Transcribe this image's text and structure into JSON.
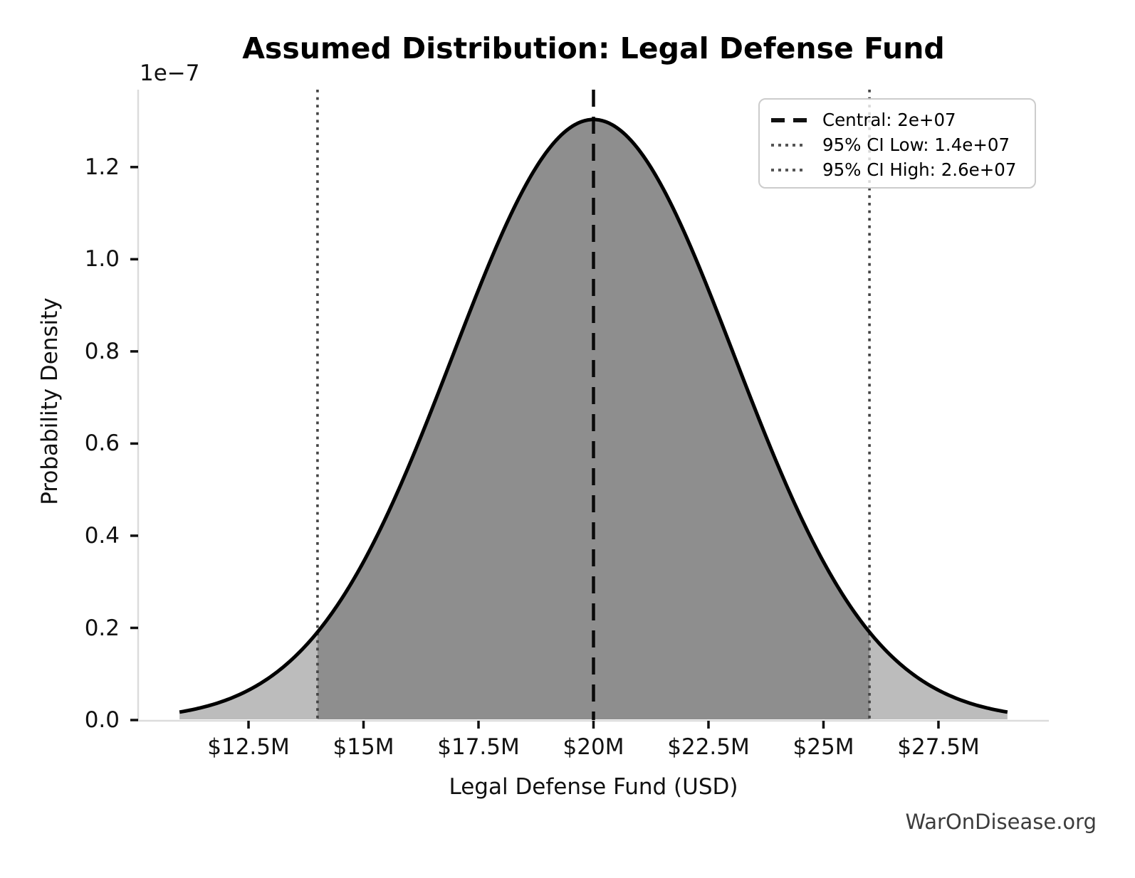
{
  "chart_data": {
    "type": "area",
    "subtype": "normal-distribution-pdf",
    "title": "Assumed Distribution: Legal Defense Fund",
    "xlabel": "Legal Defense Fund (USD)",
    "ylabel": "Probability Density",
    "y_axis_offset_label": "1e−7",
    "watermark": "WarOnDisease.org",
    "grid": false,
    "distribution": {
      "kind": "normal",
      "central": 20000000,
      "ci_low": 14000000,
      "ci_high": 26000000,
      "sigma": 3061224.5,
      "curve_min": 11000000,
      "curve_max": 29000000,
      "peak_density": 1.3e-07
    },
    "xlim": [
      10100000,
      29900000
    ],
    "ylim_1e7": [
      0,
      1.368
    ],
    "x_ticks": {
      "values": [
        12500000,
        15000000,
        17500000,
        20000000,
        22500000,
        25000000,
        27500000
      ],
      "labels": [
        "$12.5M",
        "$15M",
        "$17.5M",
        "$20M",
        "$22.5M",
        "$25M",
        "$27.5M"
      ]
    },
    "y_ticks": {
      "scale_label": "1e−7",
      "values_1e7": [
        0.0,
        0.2,
        0.4,
        0.6,
        0.8,
        1.0,
        1.2
      ],
      "labels": [
        "0.0",
        "0.2",
        "0.4",
        "0.6",
        "0.8",
        "1.0",
        "1.2"
      ]
    },
    "vlines": [
      {
        "id": "central-vline",
        "value": 20000000,
        "style": "dashed",
        "color": "#0a0a0a"
      },
      {
        "id": "ci-low-vline",
        "value": 14000000,
        "style": "dotted",
        "color": "#444444"
      },
      {
        "id": "ci-high-vline",
        "value": 26000000,
        "style": "dotted",
        "color": "#444444"
      }
    ],
    "legend": {
      "position": "upper-right",
      "entries": [
        {
          "style": "dashed",
          "color": "#111111",
          "label": "Central: 2e+07"
        },
        {
          "style": "dotted",
          "color": "#555555",
          "label": "95% CI Low: 1.4e+07"
        },
        {
          "style": "dotted",
          "color": "#555555",
          "label": "95% CI High: 2.6e+07"
        }
      ]
    },
    "colors": {
      "curve": "#000000",
      "fill_tail": "#bcbcbc",
      "fill_central": "#8e8e8e",
      "spine": "#dcdcdc",
      "tick": "#111111",
      "text": "#111111",
      "watermark": "#3c3c3c",
      "legend_border": "#cccccc"
    }
  }
}
